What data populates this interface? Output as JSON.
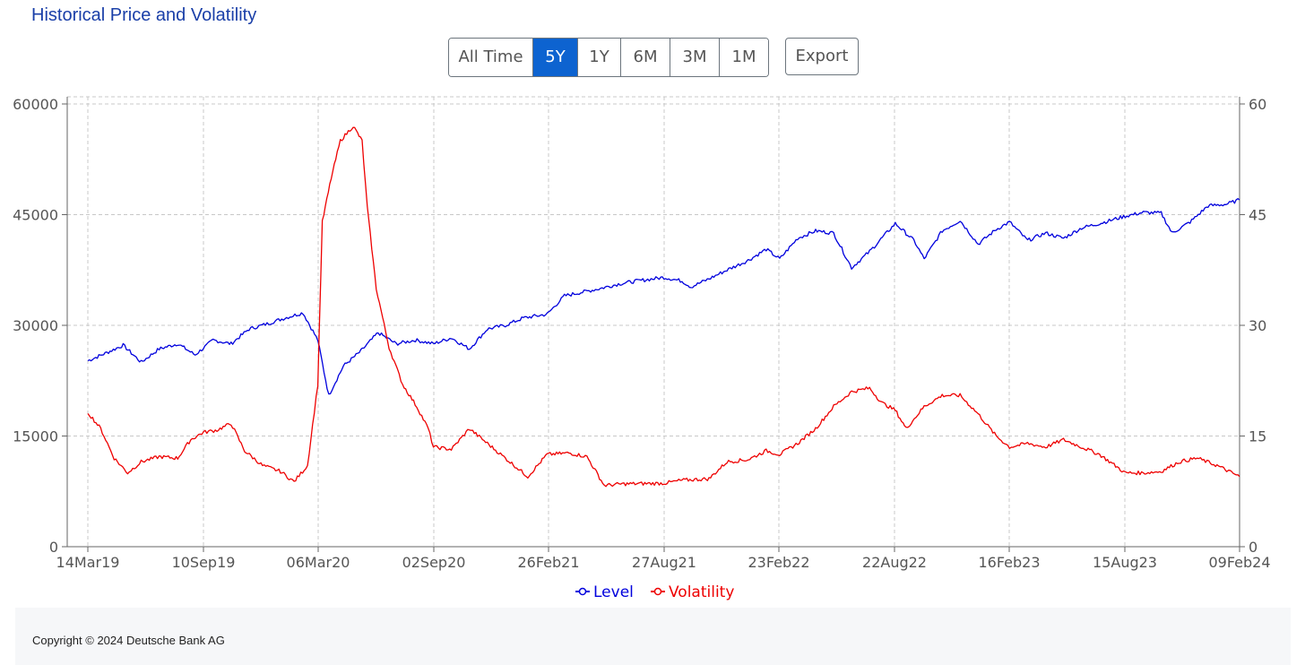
{
  "header": {
    "title": "Historical Price and Volatility"
  },
  "range_buttons": [
    {
      "label": "All Time",
      "active": false
    },
    {
      "label": "5Y",
      "active": true
    },
    {
      "label": "1Y",
      "active": false
    },
    {
      "label": "6M",
      "active": false
    },
    {
      "label": "3M",
      "active": false
    },
    {
      "label": "1M",
      "active": false
    }
  ],
  "export_label": "Export",
  "footer": {
    "copyright": "Copyright © 2024 Deutsche Bank AG"
  },
  "colors": {
    "level": "#0000dd",
    "volatility": "#ee0000",
    "active_button": "#0d63d0",
    "title": "#1a3fa8"
  },
  "chart_data": {
    "type": "line",
    "x_tick_labels": [
      "14Mar19",
      "10Sep19",
      "06Mar20",
      "02Sep20",
      "26Feb21",
      "27Aug21",
      "23Feb22",
      "22Aug22",
      "16Feb23",
      "15Aug23",
      "09Feb24"
    ],
    "y_left": {
      "ticks": [
        0,
        15000,
        30000,
        45000,
        60000
      ],
      "range": [
        0,
        60000
      ]
    },
    "y_right": {
      "ticks": [
        0,
        15,
        30,
        45,
        60
      ],
      "range": [
        0,
        60
      ]
    },
    "grid": true,
    "legend_position": "bottom",
    "x_range": [
      "2019-03-14",
      "2024-02-09"
    ],
    "series": [
      {
        "name": "Level",
        "axis": "left",
        "points": [
          [
            "2019-03-14",
            25200
          ],
          [
            "2019-04-10",
            26200
          ],
          [
            "2019-05-08",
            27300
          ],
          [
            "2019-06-05",
            25000
          ],
          [
            "2019-07-03",
            26800
          ],
          [
            "2019-08-01",
            27500
          ],
          [
            "2019-08-28",
            26000
          ],
          [
            "2019-09-25",
            28000
          ],
          [
            "2019-10-23",
            27500
          ],
          [
            "2019-11-20",
            29500
          ],
          [
            "2019-12-18",
            30200
          ],
          [
            "2020-01-15",
            31000
          ],
          [
            "2020-02-12",
            31700
          ],
          [
            "2020-03-06",
            28000
          ],
          [
            "2020-03-23",
            20500
          ],
          [
            "2020-04-15",
            24500
          ],
          [
            "2020-05-12",
            26500
          ],
          [
            "2020-06-08",
            29000
          ],
          [
            "2020-07-06",
            27500
          ],
          [
            "2020-08-05",
            28000
          ],
          [
            "2020-09-02",
            27500
          ],
          [
            "2020-09-30",
            28300
          ],
          [
            "2020-10-28",
            26800
          ],
          [
            "2020-11-25",
            29500
          ],
          [
            "2020-12-23",
            30000
          ],
          [
            "2021-01-20",
            31000
          ],
          [
            "2021-02-26",
            31500
          ],
          [
            "2021-03-25",
            34000
          ],
          [
            "2021-04-22",
            34500
          ],
          [
            "2021-05-20",
            35000
          ],
          [
            "2021-06-17",
            35600
          ],
          [
            "2021-07-15",
            36000
          ],
          [
            "2021-08-27",
            36500
          ],
          [
            "2021-09-24",
            36000
          ],
          [
            "2021-10-08",
            35200
          ],
          [
            "2021-11-05",
            36300
          ],
          [
            "2021-12-03",
            37500
          ],
          [
            "2022-01-05",
            38800
          ],
          [
            "2022-02-02",
            40300
          ],
          [
            "2022-02-23",
            39000
          ],
          [
            "2022-03-23",
            41800
          ],
          [
            "2022-04-20",
            42800
          ],
          [
            "2022-05-18",
            42500
          ],
          [
            "2022-06-15",
            37800
          ],
          [
            "2022-07-13",
            40000
          ],
          [
            "2022-08-22",
            43800
          ],
          [
            "2022-09-20",
            41500
          ],
          [
            "2022-10-06",
            39000
          ],
          [
            "2022-11-03",
            42800
          ],
          [
            "2022-12-01",
            44200
          ],
          [
            "2022-12-29",
            41000
          ],
          [
            "2023-01-26",
            43000
          ],
          [
            "2023-02-16",
            44000
          ],
          [
            "2023-03-16",
            41500
          ],
          [
            "2023-04-13",
            42500
          ],
          [
            "2023-05-11",
            41800
          ],
          [
            "2023-06-08",
            43200
          ],
          [
            "2023-07-06",
            43800
          ],
          [
            "2023-08-15",
            44800
          ],
          [
            "2023-09-12",
            45300
          ],
          [
            "2023-10-10",
            45200
          ],
          [
            "2023-10-27",
            42500
          ],
          [
            "2023-11-24",
            44000
          ],
          [
            "2023-12-22",
            46200
          ],
          [
            "2024-01-19",
            46400
          ],
          [
            "2024-02-09",
            47000
          ]
        ]
      },
      {
        "name": "Volatility",
        "axis": "right",
        "points": [
          [
            "2019-03-14",
            18.2
          ],
          [
            "2019-04-03",
            16.0
          ],
          [
            "2019-04-24",
            12.0
          ],
          [
            "2019-05-15",
            10.0
          ],
          [
            "2019-06-05",
            11.5
          ],
          [
            "2019-07-03",
            12.2
          ],
          [
            "2019-08-01",
            12.0
          ],
          [
            "2019-08-21",
            14.5
          ],
          [
            "2019-09-10",
            15.5
          ],
          [
            "2019-10-01",
            15.8
          ],
          [
            "2019-10-23",
            16.7
          ],
          [
            "2019-11-13",
            13.0
          ],
          [
            "2019-12-11",
            11.0
          ],
          [
            "2020-01-08",
            10.2
          ],
          [
            "2020-01-29",
            8.8
          ],
          [
            "2020-02-19",
            11.0
          ],
          [
            "2020-03-06",
            22.0
          ],
          [
            "2020-03-13",
            44.0
          ],
          [
            "2020-03-27",
            50.0
          ],
          [
            "2020-04-10",
            55.0
          ],
          [
            "2020-04-30",
            57.0
          ],
          [
            "2020-05-14",
            55.0
          ],
          [
            "2020-05-22",
            46.0
          ],
          [
            "2020-06-05",
            35.0
          ],
          [
            "2020-06-25",
            27.0
          ],
          [
            "2020-07-16",
            22.0
          ],
          [
            "2020-08-07",
            19.0
          ],
          [
            "2020-08-25",
            16.0
          ],
          [
            "2020-09-02",
            13.5
          ],
          [
            "2020-09-30",
            13.2
          ],
          [
            "2020-10-28",
            16.0
          ],
          [
            "2020-11-25",
            14.0
          ],
          [
            "2020-12-23",
            12.0
          ],
          [
            "2021-01-27",
            9.5
          ],
          [
            "2021-02-26",
            12.5
          ],
          [
            "2021-04-01",
            12.7
          ],
          [
            "2021-04-29",
            12.2
          ],
          [
            "2021-05-26",
            8.3
          ],
          [
            "2021-06-23",
            8.5
          ],
          [
            "2021-08-27",
            8.6
          ],
          [
            "2021-09-24",
            9.0
          ],
          [
            "2021-11-05",
            9.2
          ],
          [
            "2021-12-03",
            11.5
          ],
          [
            "2022-01-05",
            11.8
          ],
          [
            "2022-02-02",
            13.0
          ],
          [
            "2022-02-23",
            12.5
          ],
          [
            "2022-03-23",
            14.0
          ],
          [
            "2022-04-20",
            16.0
          ],
          [
            "2022-05-18",
            19.0
          ],
          [
            "2022-06-15",
            21.0
          ],
          [
            "2022-07-13",
            21.5
          ],
          [
            "2022-08-01",
            19.5
          ],
          [
            "2022-08-22",
            18.5
          ],
          [
            "2022-09-08",
            16.0
          ],
          [
            "2022-10-06",
            19.0
          ],
          [
            "2022-11-03",
            20.5
          ],
          [
            "2022-12-01",
            20.5
          ],
          [
            "2022-12-29",
            18.0
          ],
          [
            "2023-01-26",
            15.0
          ],
          [
            "2023-02-16",
            13.5
          ],
          [
            "2023-03-16",
            14.0
          ],
          [
            "2023-04-13",
            13.5
          ],
          [
            "2023-05-11",
            14.5
          ],
          [
            "2023-06-08",
            13.5
          ],
          [
            "2023-07-06",
            12.5
          ],
          [
            "2023-08-15",
            10.0
          ],
          [
            "2023-09-12",
            10.0
          ],
          [
            "2023-10-10",
            10.2
          ],
          [
            "2023-11-07",
            11.5
          ],
          [
            "2023-12-05",
            12.0
          ],
          [
            "2024-01-05",
            11.0
          ],
          [
            "2024-02-09",
            9.5
          ]
        ]
      }
    ]
  }
}
